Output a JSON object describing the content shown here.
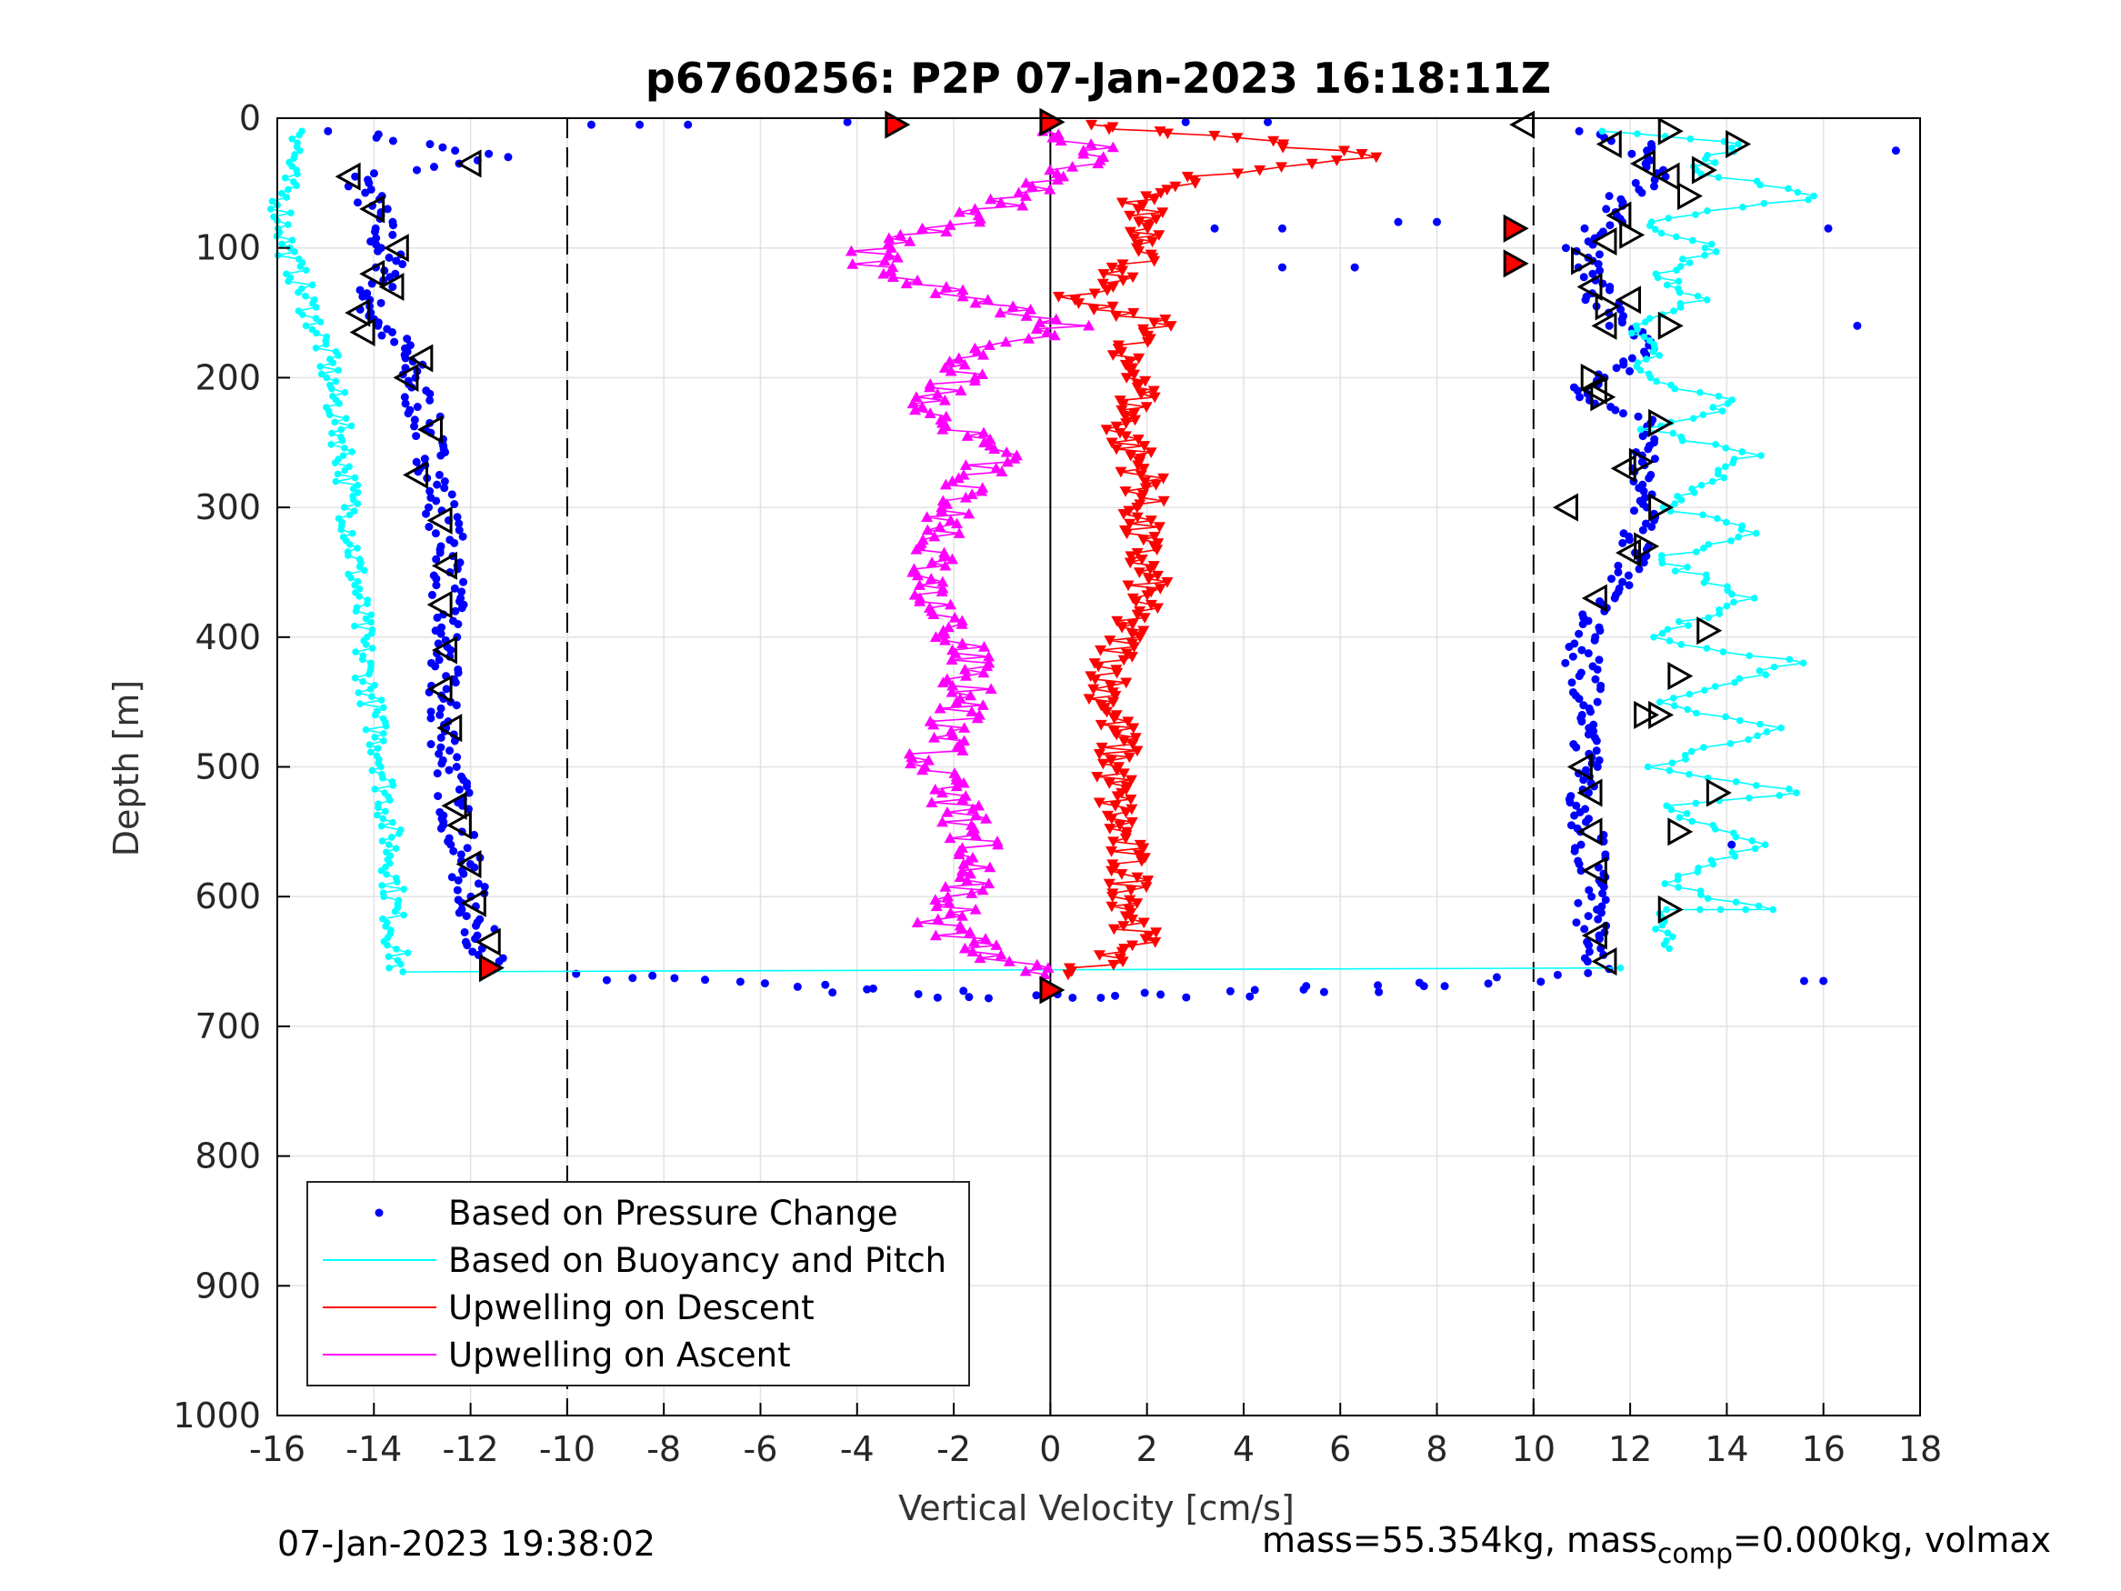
{
  "chart_data": {
    "type": "scatter",
    "title": "p6760256: P2P 07-Jan-2023 16:18:11Z",
    "xlabel": "Vertical Velocity [cm/s]",
    "ylabel": "Depth [m]",
    "xlim": [
      -16,
      18
    ],
    "ylim": [
      0,
      1000
    ],
    "y_reversed": true,
    "grid": true,
    "x_ticks": [
      "-16",
      "-14",
      "-12",
      "-10",
      "-8",
      "-6",
      "-4",
      "-2",
      "0",
      "2",
      "4",
      "6",
      "8",
      "10",
      "12",
      "14",
      "16",
      "18"
    ],
    "y_ticks": [
      "0",
      "100",
      "200",
      "300",
      "400",
      "500",
      "600",
      "700",
      "800",
      "900",
      "1000"
    ],
    "reference_lines": [
      {
        "x": -10,
        "style": "dashed",
        "color": "#000000"
      },
      {
        "x": 0,
        "style": "solid",
        "color": "#000000"
      },
      {
        "x": 10,
        "style": "dashed",
        "color": "#000000"
      }
    ],
    "legend_position": "bottom-left",
    "legend": [
      {
        "label": "Based on Pressure Change",
        "color": "#0000ff",
        "style": "dot"
      },
      {
        "label": "Based on Buoyancy and Pitch",
        "color": "#00ffff",
        "style": "line"
      },
      {
        "label": "Upwelling on Descent",
        "color": "#ff0000",
        "style": "line"
      },
      {
        "label": "Upwelling on Ascent",
        "color": "#ff00ff",
        "style": "line"
      }
    ],
    "series": [
      {
        "name": "Based on Pressure Change",
        "color": "#0000ff",
        "marker": "dot",
        "segments": [
          {
            "part": "dive",
            "points": [
              [
                -14.6,
                10
              ],
              [
                -11.4,
                30
              ],
              [
                -14.3,
                45
              ],
              [
                -13.9,
                80
              ],
              [
                -13.8,
                100
              ],
              [
                -13.6,
                120
              ],
              [
                -14.2,
                140
              ],
              [
                -13.8,
                160
              ],
              [
                -13.4,
                180
              ],
              [
                -13.2,
                200
              ],
              [
                -12.9,
                240
              ],
              [
                -12.7,
                280
              ],
              [
                -12.6,
                300
              ],
              [
                -12.4,
                340
              ],
              [
                -12.5,
                380
              ],
              [
                -12.6,
                420
              ],
              [
                -12.6,
                460
              ],
              [
                -12.4,
                500
              ],
              [
                -12.3,
                540
              ],
              [
                -12.1,
                580
              ],
              [
                -11.9,
                620
              ],
              [
                -11.6,
                650
              ]
            ]
          },
          {
            "part": "bottom",
            "points": [
              [
                -10,
                660
              ],
              [
                -6,
                665
              ],
              [
                -4,
                672
              ],
              [
                -2,
                675
              ],
              [
                0,
                675
              ],
              [
                2,
                675
              ],
              [
                4,
                674
              ],
              [
                6,
                672
              ],
              [
                8,
                668
              ],
              [
                10,
                662
              ],
              [
                11.4,
                655
              ]
            ]
          },
          {
            "part": "climb",
            "points": [
              [
                11.4,
                650
              ],
              [
                11.2,
                620
              ],
              [
                11.2,
                580
              ],
              [
                11.1,
                540
              ],
              [
                11.0,
                500
              ],
              [
                11.3,
                460
              ],
              [
                11.0,
                420
              ],
              [
                11.2,
                380
              ],
              [
                12.1,
                340
              ],
              [
                12.3,
                300
              ],
              [
                12.2,
                260
              ],
              [
                12.6,
                240
              ],
              [
                11.0,
                210
              ],
              [
                12.5,
                180
              ],
              [
                11.5,
                150
              ],
              [
                11.2,
                120
              ],
              [
                11.0,
                100
              ],
              [
                11.5,
                80
              ],
              [
                11.9,
                60
              ],
              [
                12.6,
                40
              ],
              [
                12.2,
                20
              ],
              [
                11.0,
                10
              ]
            ]
          },
          {
            "part": "surface",
            "points": [
              [
                -9.5,
                5
              ],
              [
                -8.5,
                5
              ],
              [
                -7.5,
                5
              ],
              [
                -4.2,
                3
              ],
              [
                2.8,
                3
              ],
              [
                4.5,
                3
              ],
              [
                7.2,
                80
              ],
              [
                8.0,
                80
              ],
              [
                3.4,
                85
              ],
              [
                4.8,
                85
              ],
              [
                4.8,
                115
              ],
              [
                6.3,
                115
              ],
              [
                17.5,
                25
              ],
              [
                16.1,
                85
              ],
              [
                16.7,
                160
              ],
              [
                15.6,
                665
              ],
              [
                16.0,
                665
              ],
              [
                14.1,
                560
              ]
            ]
          }
        ]
      },
      {
        "name": "Based on Buoyancy and Pitch",
        "color": "#00ffff",
        "marker": "line-dot",
        "segments": [
          {
            "part": "dive",
            "points": [
              [
                -15.4,
                10
              ],
              [
                -15.8,
                40
              ],
              [
                -15.9,
                70
              ],
              [
                -15.8,
                100
              ],
              [
                -15.4,
                140
              ],
              [
                -15.0,
                180
              ],
              [
                -14.8,
                220
              ],
              [
                -14.6,
                260
              ],
              [
                -14.5,
                300
              ],
              [
                -14.4,
                340
              ],
              [
                -14.3,
                380
              ],
              [
                -14.2,
                420
              ],
              [
                -14.0,
                460
              ],
              [
                -13.8,
                500
              ],
              [
                -13.7,
                540
              ],
              [
                -13.6,
                580
              ],
              [
                -13.6,
                620
              ],
              [
                -13.5,
                655
              ]
            ]
          },
          {
            "part": "bottom",
            "points": [
              [
                -13.4,
                658
              ],
              [
                11.8,
                655
              ]
            ]
          },
          {
            "part": "climb",
            "points": [
              [
                12.6,
                640
              ],
              [
                12.8,
                610
              ],
              [
                14.8,
                610
              ],
              [
                12.6,
                590
              ],
              [
                14.8,
                560
              ],
              [
                12.6,
                530
              ],
              [
                15.5,
                520
              ],
              [
                12.6,
                500
              ],
              [
                14.9,
                470
              ],
              [
                12.6,
                450
              ],
              [
                15.5,
                420
              ],
              [
                12.4,
                400
              ],
              [
                14.5,
                370
              ],
              [
                12.6,
                340
              ],
              [
                14.6,
                320
              ],
              [
                12.8,
                300
              ],
              [
                14.5,
                260
              ],
              [
                12.4,
                240
              ],
              [
                14.2,
                220
              ],
              [
                12.3,
                200
              ],
              [
                12.4,
                180
              ],
              [
                12.0,
                160
              ],
              [
                13.4,
                140
              ],
              [
                12.6,
                120
              ],
              [
                13.8,
                100
              ],
              [
                12.2,
                80
              ],
              [
                16.0,
                60
              ],
              [
                13.2,
                40
              ],
              [
                14.3,
                20
              ],
              [
                11.5,
                10
              ]
            ]
          }
        ]
      },
      {
        "name": "Upwelling on Descent",
        "color": "#ff0000",
        "marker": "triangle-down",
        "segments": [
          {
            "part": "profile",
            "points": [
              [
                0.5,
                5
              ],
              [
                4.0,
                15
              ],
              [
                6.5,
                30
              ],
              [
                3.0,
                45
              ],
              [
                1.8,
                60
              ],
              [
                2.0,
                80
              ],
              [
                2.2,
                100
              ],
              [
                1.5,
                120
              ],
              [
                0.3,
                140
              ],
              [
                2.5,
                160
              ],
              [
                1.2,
                180
              ],
              [
                2.0,
                200
              ],
              [
                1.5,
                240
              ],
              [
                2.0,
                280
              ],
              [
                1.8,
                320
              ],
              [
                2.0,
                360
              ],
              [
                1.5,
                400
              ],
              [
                1.2,
                440
              ],
              [
                1.4,
                480
              ],
              [
                1.3,
                520
              ],
              [
                1.5,
                560
              ],
              [
                1.7,
                600
              ],
              [
                1.8,
                640
              ],
              [
                0.3,
                660
              ]
            ]
          }
        ]
      },
      {
        "name": "Upwelling on Ascent",
        "color": "#ff00ff",
        "marker": "triangle-up",
        "segments": [
          {
            "part": "profile",
            "points": [
              [
                0.0,
                660
              ],
              [
                -1.5,
                640
              ],
              [
                -2.2,
                620
              ],
              [
                -1.8,
                600
              ],
              [
                -1.5,
                570
              ],
              [
                -1.8,
                540
              ],
              [
                -2.5,
                500
              ],
              [
                -2.0,
                460
              ],
              [
                -1.5,
                420
              ],
              [
                -2.2,
                380
              ],
              [
                -2.5,
                340
              ],
              [
                -2.0,
                300
              ],
              [
                -1.2,
                260
              ],
              [
                -2.5,
                220
              ],
              [
                -2.0,
                200
              ],
              [
                -1.5,
                180
              ],
              [
                0.5,
                160
              ],
              [
                -1.5,
                140
              ],
              [
                -3.5,
                120
              ],
              [
                -3.8,
                100
              ],
              [
                -2.0,
                80
              ],
              [
                -0.5,
                60
              ],
              [
                0.5,
                40
              ],
              [
                1.0,
                20
              ],
              [
                -0.3,
                10
              ]
            ]
          }
        ]
      }
    ],
    "markers": {
      "open_triangle_left": [
        [
          -12.0,
          35
        ],
        [
          -14.5,
          45
        ],
        [
          -14.0,
          70
        ],
        [
          -13.5,
          100
        ],
        [
          -14.0,
          120
        ],
        [
          -13.6,
          130
        ],
        [
          -14.3,
          150
        ],
        [
          -14.2,
          165
        ],
        [
          -13.0,
          185
        ],
        [
          -13.3,
          200
        ],
        [
          -12.8,
          240
        ],
        [
          -13.1,
          275
        ],
        [
          -12.6,
          310
        ],
        [
          -12.5,
          345
        ],
        [
          -12.6,
          375
        ],
        [
          -12.5,
          410
        ],
        [
          -12.6,
          440
        ],
        [
          -12.4,
          470
        ],
        [
          -12.3,
          530
        ],
        [
          -12.2,
          545
        ],
        [
          -12.0,
          575
        ],
        [
          -11.9,
          605
        ],
        [
          -11.6,
          635
        ],
        [
          11.6,
          20
        ],
        [
          12.3,
          35
        ],
        [
          12.8,
          45
        ],
        [
          11.8,
          75
        ],
        [
          11.5,
          95
        ],
        [
          11.2,
          130
        ],
        [
          12.0,
          140
        ],
        [
          11.5,
          160
        ],
        [
          11.3,
          210
        ],
        [
          11.9,
          270
        ],
        [
          12.0,
          335
        ],
        [
          11.3,
          370
        ],
        [
          11.0,
          500
        ],
        [
          11.2,
          520
        ],
        [
          11.2,
          550
        ],
        [
          11.3,
          580
        ],
        [
          11.3,
          630
        ],
        [
          11.5,
          650
        ],
        [
          10.7,
          300
        ],
        [
          9.8,
          5
        ]
      ],
      "open_triangle_right": [
        [
          12.8,
          10
        ],
        [
          14.2,
          20
        ],
        [
          13.5,
          40
        ],
        [
          13.2,
          60
        ],
        [
          11.5,
          145
        ],
        [
          12.8,
          160
        ],
        [
          11.2,
          200
        ],
        [
          12.6,
          235
        ],
        [
          12.6,
          300
        ],
        [
          12.3,
          330
        ],
        [
          13.6,
          395
        ],
        [
          13.0,
          430
        ],
        [
          12.6,
          460
        ],
        [
          13.8,
          520
        ],
        [
          13.0,
          550
        ],
        [
          12.8,
          610
        ],
        [
          12.0,
          90
        ],
        [
          11.0,
          110
        ],
        [
          11.4,
          215
        ],
        [
          12.2,
          265
        ],
        [
          12.3,
          460
        ],
        [
          0.0,
          3
        ]
      ],
      "red_filled": [
        [
          -3.2,
          5
        ],
        [
          0.0,
          3
        ],
        [
          9.6,
          85
        ],
        [
          9.6,
          112
        ],
        [
          -11.6,
          655
        ],
        [
          0.0,
          672
        ]
      ]
    }
  },
  "footer": {
    "timestamp": "07-Jan-2023 19:38:02",
    "mass_text_a": "mass=55.354kg, mass",
    "mass_sub": "comp",
    "mass_text_b": "=0.000kg, volmax"
  }
}
